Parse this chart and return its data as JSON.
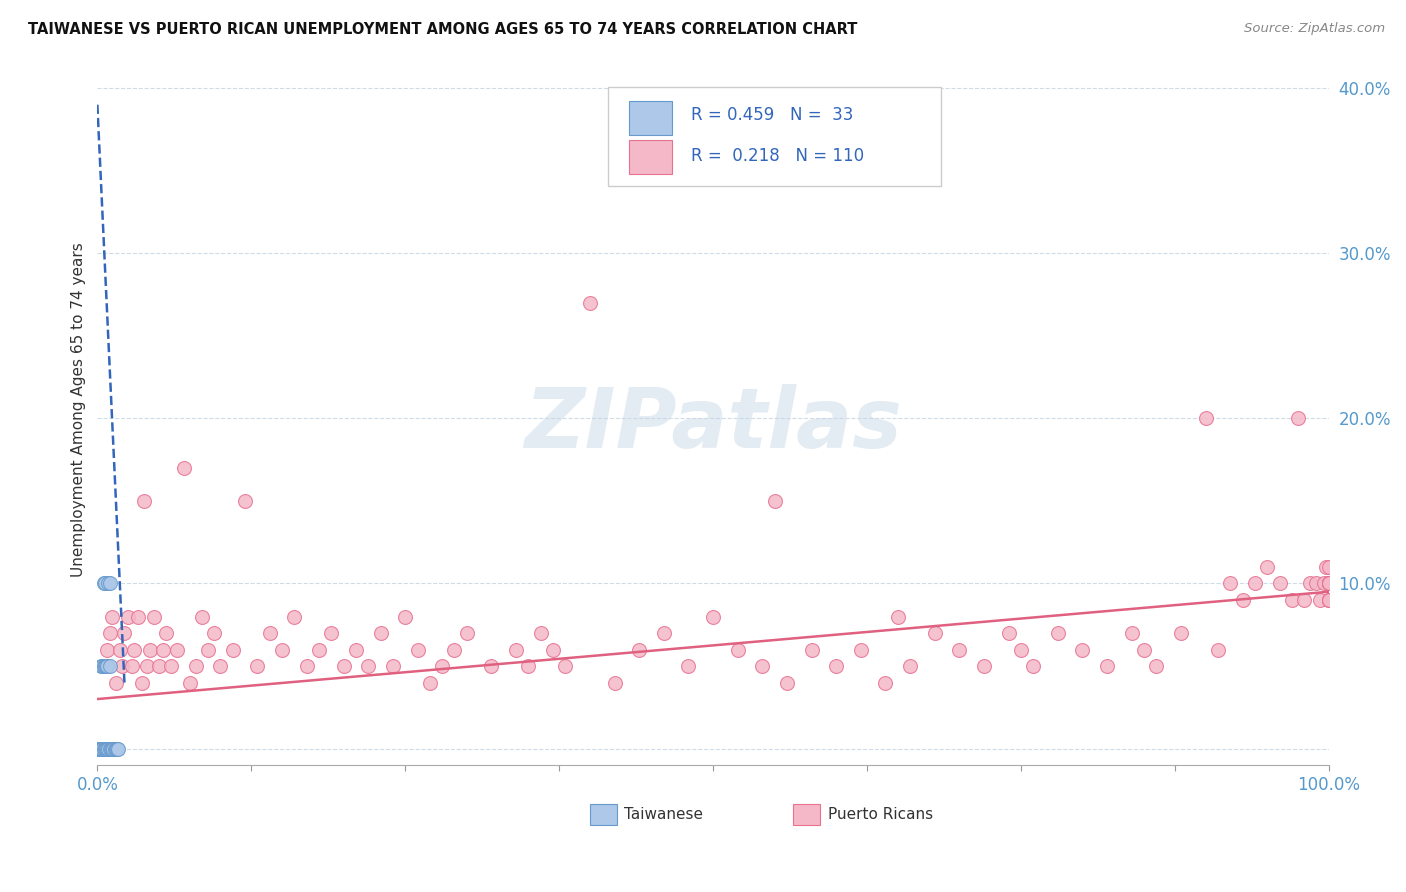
{
  "title": "TAIWANESE VS PUERTO RICAN UNEMPLOYMENT AMONG AGES 65 TO 74 YEARS CORRELATION CHART",
  "source": "Source: ZipAtlas.com",
  "ylabel": "Unemployment Among Ages 65 to 74 years",
  "xlim": [
    0,
    1.0
  ],
  "ylim": [
    -0.01,
    0.42
  ],
  "taiwanese_color": "#adc8e8",
  "taiwanese_edge": "#6699cc",
  "puerto_rican_color": "#f4b8c8",
  "puerto_rican_edge": "#e87090",
  "trend_taiwanese_color": "#3366bb",
  "trend_puerto_rican_color": "#e06080",
  "legend_R_taiwanese": "0.459",
  "legend_N_taiwanese": "33",
  "legend_R_puerto_rican": "0.218",
  "legend_N_puerto_rican": "110",
  "background_color": "#ffffff",
  "tw_x": [
    0.001,
    0.001,
    0.002,
    0.002,
    0.002,
    0.003,
    0.003,
    0.003,
    0.004,
    0.004,
    0.004,
    0.005,
    0.005,
    0.005,
    0.006,
    0.006,
    0.006,
    0.007,
    0.007,
    0.008,
    0.008,
    0.009,
    0.009,
    0.01,
    0.01,
    0.01,
    0.011,
    0.012,
    0.013,
    0.014,
    0.015,
    0.016,
    0.017
  ],
  "tw_y": [
    0.0,
    0.0,
    0.0,
    0.0,
    0.0,
    0.0,
    0.0,
    0.05,
    0.0,
    0.0,
    0.05,
    0.0,
    0.05,
    0.1,
    0.0,
    0.05,
    0.1,
    0.0,
    0.05,
    0.0,
    0.05,
    0.0,
    0.1,
    0.0,
    0.05,
    0.1,
    0.0,
    0.0,
    0.0,
    0.0,
    0.0,
    0.0,
    0.0
  ],
  "tw_trend_x0": 0.0,
  "tw_trend_x1": 0.022,
  "tw_trend_y0": 0.39,
  "tw_trend_y1": 0.04,
  "pr_trend_y0": 0.03,
  "pr_trend_y1": 0.095,
  "pr_x": [
    0.005,
    0.008,
    0.01,
    0.012,
    0.015,
    0.018,
    0.02,
    0.022,
    0.025,
    0.028,
    0.03,
    0.033,
    0.036,
    0.038,
    0.04,
    0.043,
    0.046,
    0.05,
    0.053,
    0.056,
    0.06,
    0.065,
    0.07,
    0.075,
    0.08,
    0.085,
    0.09,
    0.095,
    0.1,
    0.11,
    0.12,
    0.13,
    0.14,
    0.15,
    0.16,
    0.17,
    0.18,
    0.19,
    0.2,
    0.21,
    0.22,
    0.23,
    0.24,
    0.25,
    0.26,
    0.27,
    0.28,
    0.29,
    0.3,
    0.32,
    0.34,
    0.35,
    0.36,
    0.37,
    0.38,
    0.4,
    0.42,
    0.44,
    0.46,
    0.48,
    0.5,
    0.52,
    0.54,
    0.55,
    0.56,
    0.58,
    0.6,
    0.62,
    0.64,
    0.65,
    0.66,
    0.68,
    0.7,
    0.72,
    0.74,
    0.75,
    0.76,
    0.78,
    0.8,
    0.82,
    0.84,
    0.85,
    0.86,
    0.88,
    0.9,
    0.91,
    0.92,
    0.93,
    0.94,
    0.95,
    0.96,
    0.97,
    0.975,
    0.98,
    0.985,
    0.99,
    0.993,
    0.996,
    0.998,
    1.0,
    1.0,
    1.0,
    1.0,
    1.0,
    1.0,
    1.0,
    1.0,
    1.0,
    1.0,
    1.0
  ],
  "pr_y": [
    0.05,
    0.06,
    0.07,
    0.08,
    0.04,
    0.06,
    0.05,
    0.07,
    0.08,
    0.05,
    0.06,
    0.08,
    0.04,
    0.15,
    0.05,
    0.06,
    0.08,
    0.05,
    0.06,
    0.07,
    0.05,
    0.06,
    0.17,
    0.04,
    0.05,
    0.08,
    0.06,
    0.07,
    0.05,
    0.06,
    0.15,
    0.05,
    0.07,
    0.06,
    0.08,
    0.05,
    0.06,
    0.07,
    0.05,
    0.06,
    0.05,
    0.07,
    0.05,
    0.08,
    0.06,
    0.04,
    0.05,
    0.06,
    0.07,
    0.05,
    0.06,
    0.05,
    0.07,
    0.06,
    0.05,
    0.27,
    0.04,
    0.06,
    0.07,
    0.05,
    0.08,
    0.06,
    0.05,
    0.15,
    0.04,
    0.06,
    0.05,
    0.06,
    0.04,
    0.08,
    0.05,
    0.07,
    0.06,
    0.05,
    0.07,
    0.06,
    0.05,
    0.07,
    0.06,
    0.05,
    0.07,
    0.06,
    0.05,
    0.07,
    0.2,
    0.06,
    0.1,
    0.09,
    0.1,
    0.11,
    0.1,
    0.09,
    0.2,
    0.09,
    0.1,
    0.1,
    0.09,
    0.1,
    0.11,
    0.1,
    0.09,
    0.1,
    0.09,
    0.1,
    0.11,
    0.1,
    0.09,
    0.1,
    0.09,
    0.1
  ]
}
